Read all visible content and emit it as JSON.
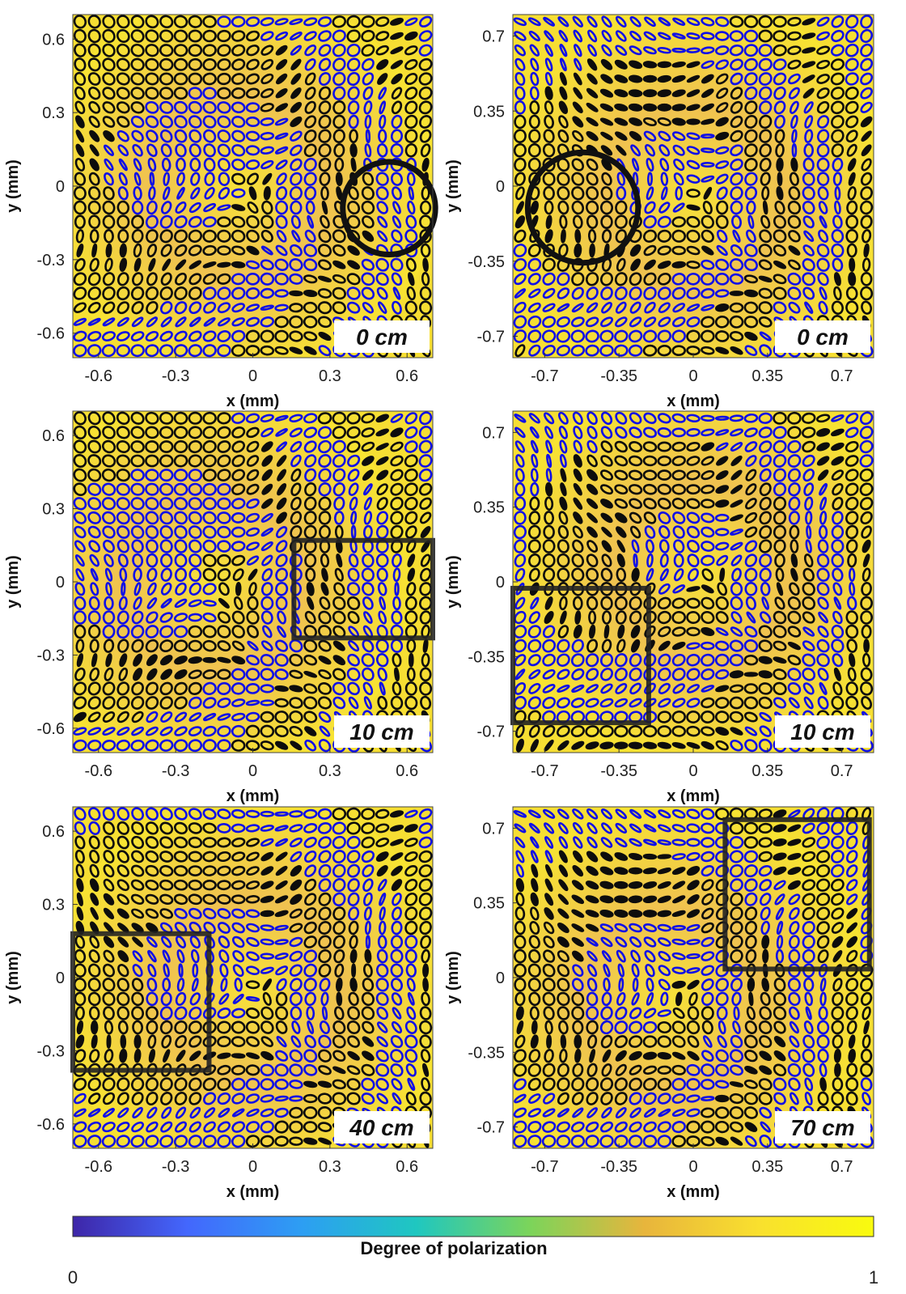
{
  "figure": {
    "colorbar": {
      "label": "Degree of polarization",
      "min_label": "0",
      "max_label": "1",
      "colormap": [
        "#3e26a8",
        "#4367fd",
        "#2d9ef3",
        "#1fc7c0",
        "#7cd45a",
        "#e8b53c",
        "#f9e02e",
        "#f9fb0e"
      ]
    },
    "ellipse_colors": {
      "handedness_a": "#1010e6",
      "handedness_b": "#0d0d0d"
    },
    "overlay_color": "#111111"
  },
  "chart_data": [
    {
      "type": "heatmap",
      "panel": "top-left",
      "distance_label": "0 cm",
      "xlabel": "x (mm)",
      "ylabel": "y (mm)",
      "xlim": [
        -0.7,
        0.7
      ],
      "ylim": [
        -0.7,
        0.7
      ],
      "xticks": [
        -0.6,
        -0.3,
        0,
        0.3,
        0.6
      ],
      "xtick_labels": [
        "-0.6",
        "-0.3",
        "0",
        "0.3",
        "0.6"
      ],
      "yticks": [
        0.6,
        0.3,
        0,
        -0.3,
        -0.6
      ],
      "ytick_labels": [
        "0.6",
        "0.3",
        "0",
        "-0.3",
        "-0.6"
      ],
      "overlay": {
        "shape": "circle",
        "center": [
          0.53,
          -0.09
        ],
        "radius": 0.18
      },
      "vortex_center": [
        -0.05,
        0.0
      ]
    },
    {
      "type": "heatmap",
      "panel": "top-right",
      "distance_label": "0 cm",
      "xlabel": "x (mm)",
      "ylabel": "y (mm)",
      "xlim": [
        -0.85,
        0.85
      ],
      "ylim": [
        -0.8,
        0.8
      ],
      "xticks": [
        -0.7,
        -0.35,
        0,
        0.35,
        0.7
      ],
      "xtick_labels": [
        "-0.7",
        "-0.35",
        "0",
        "0.35",
        "0.7"
      ],
      "yticks": [
        0.7,
        0.35,
        0,
        -0.35,
        -0.7
      ],
      "ytick_labels": [
        "0.7",
        "0.35",
        "0",
        "-0.35",
        "-0.7"
      ],
      "overlay": {
        "shape": "circle",
        "center": [
          -0.52,
          -0.1
        ],
        "radius": 0.26
      },
      "vortex_center": [
        0.0,
        -0.05
      ]
    },
    {
      "type": "heatmap",
      "panel": "middle-left",
      "distance_label": "10 cm",
      "xlabel": "x (mm)",
      "ylabel": "y (mm)",
      "xlim": [
        -0.7,
        0.7
      ],
      "ylim": [
        -0.7,
        0.7
      ],
      "xticks": [
        -0.6,
        -0.3,
        0,
        0.3,
        0.6
      ],
      "xtick_labels": [
        "-0.6",
        "-0.3",
        "0",
        "0.3",
        "0.6"
      ],
      "yticks": [
        0.6,
        0.3,
        0,
        -0.3,
        -0.6
      ],
      "ytick_labels": [
        "0.6",
        "0.3",
        "0",
        "-0.3",
        "-0.6"
      ],
      "overlay": {
        "shape": "rect",
        "x0": 0.16,
        "y0": -0.23,
        "x1": 0.7,
        "y1": 0.17
      },
      "vortex_center": [
        -0.15,
        0.0
      ]
    },
    {
      "type": "heatmap",
      "panel": "middle-right",
      "distance_label": "10 cm",
      "xlabel": "x (mm)",
      "ylabel": "y (mm)",
      "xlim": [
        -0.85,
        0.85
      ],
      "ylim": [
        -0.8,
        0.8
      ],
      "xticks": [
        -0.7,
        -0.35,
        0,
        0.35,
        0.7
      ],
      "xtick_labels": [
        "-0.7",
        "-0.35",
        "0",
        "0.35",
        "0.7"
      ],
      "yticks": [
        0.7,
        0.35,
        0,
        -0.35,
        -0.7
      ],
      "ytick_labels": [
        "0.7",
        "0.35",
        "0",
        "-0.35",
        "-0.7"
      ],
      "overlay": {
        "shape": "rect",
        "x0": -0.85,
        "y0": -0.66,
        "x1": -0.21,
        "y1": -0.03
      },
      "vortex_center": [
        0.05,
        0.05
      ]
    },
    {
      "type": "heatmap",
      "panel": "bottom-left",
      "distance_label": "40 cm",
      "xlabel": "x (mm)",
      "ylabel": "y (mm)",
      "xlim": [
        -0.7,
        0.7
      ],
      "ylim": [
        -0.7,
        0.7
      ],
      "xticks": [
        -0.6,
        -0.3,
        0,
        0.3,
        0.6
      ],
      "xtick_labels": [
        "-0.6",
        "-0.3",
        "0",
        "0.3",
        "0.6"
      ],
      "yticks": [
        0.6,
        0.3,
        0,
        -0.3,
        -0.6
      ],
      "ytick_labels": [
        "0.6",
        "0.3",
        "0",
        "-0.3",
        "-0.6"
      ],
      "overlay": {
        "shape": "rect",
        "x0": -0.7,
        "y0": -0.38,
        "x1": -0.17,
        "y1": 0.18
      },
      "vortex_center": [
        0.0,
        -0.05
      ]
    },
    {
      "type": "heatmap",
      "panel": "bottom-right",
      "distance_label": "70 cm",
      "xlabel": "x (mm)",
      "ylabel": "y (mm)",
      "xlim": [
        -0.85,
        0.85
      ],
      "ylim": [
        -0.8,
        0.8
      ],
      "xticks": [
        -0.7,
        -0.35,
        0,
        0.35,
        0.7
      ],
      "xtick_labels": [
        "-0.7",
        "-0.35",
        "0",
        "0.35",
        "0.7"
      ],
      "yticks": [
        0.7,
        0.35,
        0,
        -0.35,
        -0.7
      ],
      "ytick_labels": [
        "0.7",
        "0.35",
        "0",
        "-0.35",
        "-0.7"
      ],
      "overlay": {
        "shape": "rect",
        "x0": 0.15,
        "y0": 0.04,
        "x1": 0.83,
        "y1": 0.74
      },
      "vortex_center": [
        -0.1,
        -0.1
      ]
    }
  ]
}
